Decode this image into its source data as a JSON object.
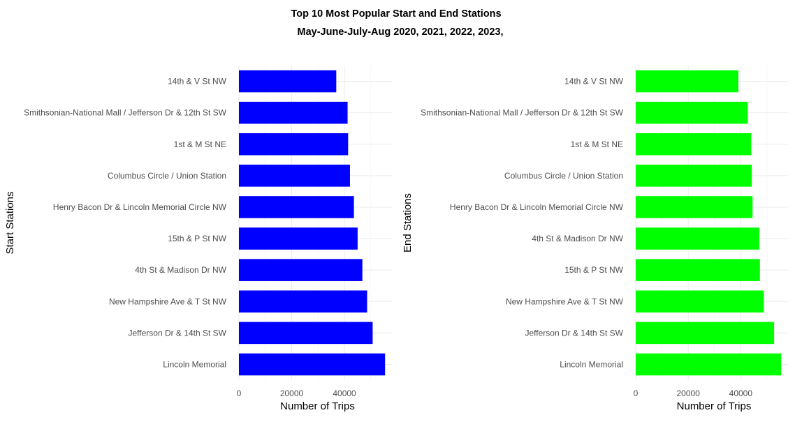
{
  "title_line1": "Top 10 Most Popular Start and End Stations",
  "title_line2": "May-June-July-Aug 2020, 2021, 2022, 2023,",
  "chart_data": [
    {
      "type": "bar",
      "orientation": "horizontal",
      "ylabel": "Start Stations",
      "xlabel": "Number of Trips",
      "xlim": [
        0,
        58000
      ],
      "xticks": [
        0,
        20000,
        40000
      ],
      "grid": true,
      "color": "#0000FF",
      "categories": [
        "14th & V St NW",
        "Smithsonian-National Mall / Jefferson Dr & 12th St SW",
        "1st & M St NE",
        "Columbus Circle / Union Station",
        "Henry Bacon Dr & Lincoln Memorial Circle NW",
        "15th & P St NW",
        "4th St & Madison Dr NW",
        "New Hampshire Ave & T St NW",
        "Jefferson Dr & 14th St SW",
        "Lincoln Memorial"
      ],
      "values": [
        36900,
        41200,
        41400,
        42100,
        43600,
        45000,
        46800,
        48600,
        50700,
        55400
      ]
    },
    {
      "type": "bar",
      "orientation": "horizontal",
      "ylabel": "End Stations",
      "xlabel": "Number of Trips",
      "xlim": [
        0,
        58000
      ],
      "xticks": [
        0,
        20000,
        40000
      ],
      "grid": true,
      "color": "#00FF00",
      "categories": [
        "14th & V St NW",
        "Smithsonian-National Mall / Jefferson Dr & 12th St SW",
        "1st & M St NE",
        "Columbus Circle / Union Station",
        "Henry Bacon Dr & Lincoln Memorial Circle NW",
        "4th St & Madison Dr NW",
        "15th & P St NW",
        "New Hampshire Ave & T St NW",
        "Jefferson Dr & 14th St SW",
        "Lincoln Memorial"
      ],
      "values": [
        39100,
        42700,
        44000,
        44200,
        44500,
        47100,
        47300,
        48800,
        52700,
        55400
      ]
    }
  ]
}
